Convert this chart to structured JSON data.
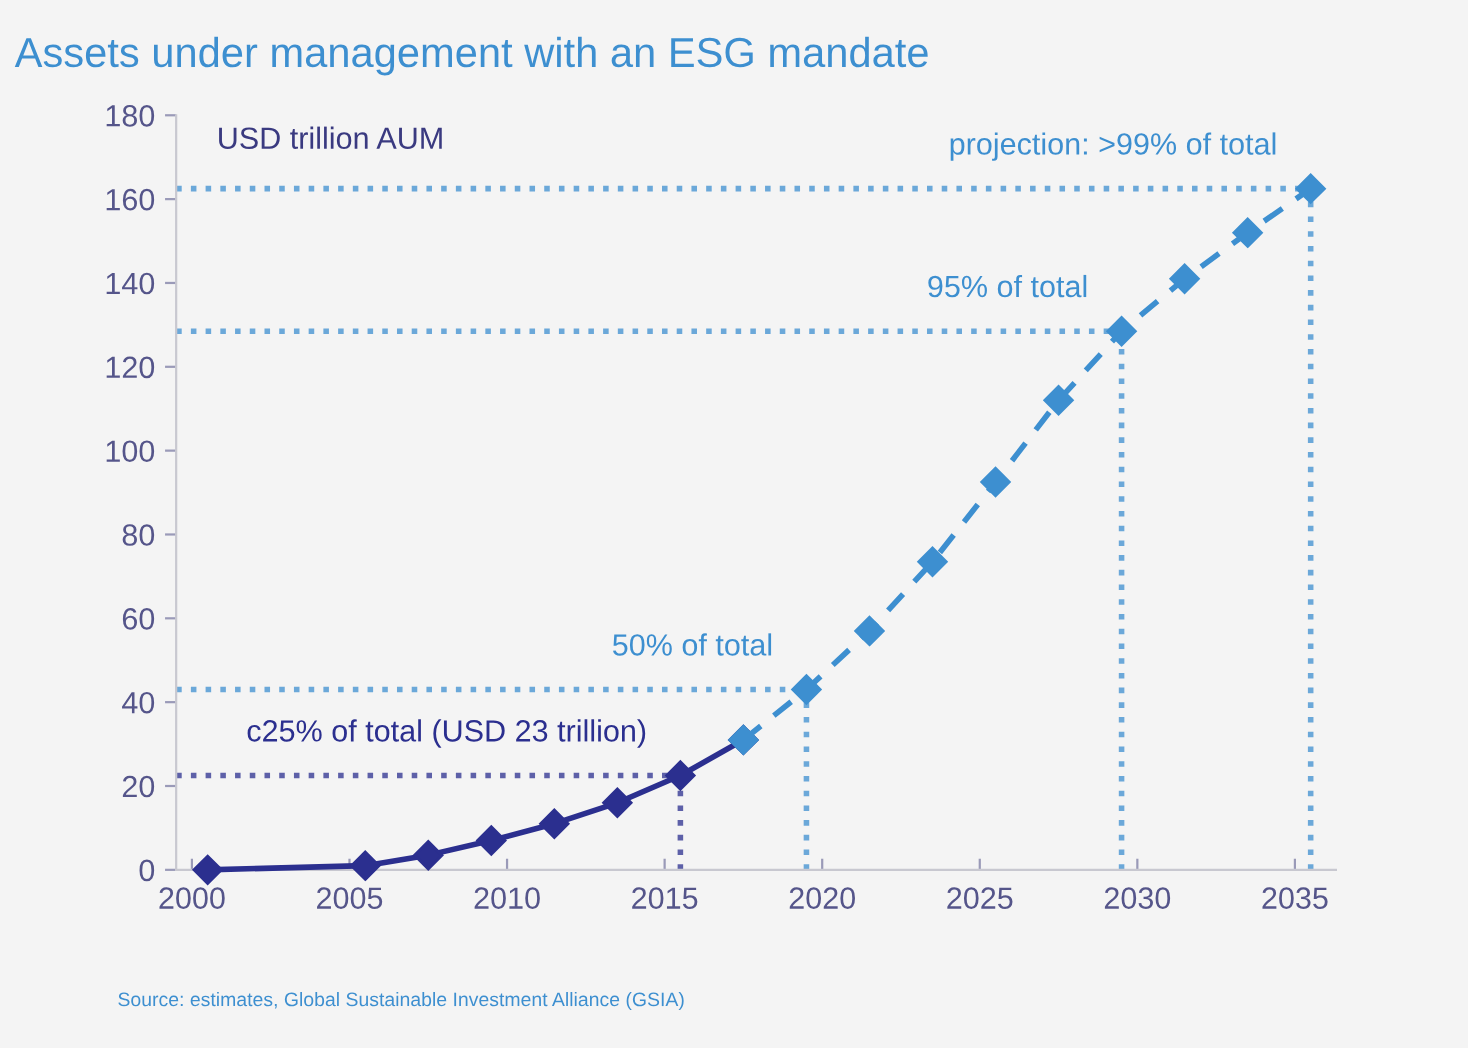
{
  "chart_data": {
    "type": "line",
    "title": "Assets under management with an ESG mandate",
    "ylabel": "USD trillion AUM",
    "series": [
      {
        "color": "#2b2f8f",
        "line_style": "solid",
        "x": [
          2000.5,
          2005.5,
          2007.5,
          2009.5,
          2011.5,
          2013.5,
          2015.5,
          2017.5
        ],
        "values": [
          0,
          1,
          3.5,
          7,
          11,
          16,
          22.5,
          31
        ]
      },
      {
        "color": "#3d8fd0",
        "line_style": "dashed",
        "x": [
          2017.5,
          2019.5,
          2021.5,
          2023.5,
          2025.5,
          2027.5,
          2029.5,
          2031.5,
          2033.5,
          2035.5
        ],
        "values": [
          31,
          43,
          57,
          73.5,
          92.5,
          112,
          128.5,
          141,
          152,
          162.5
        ]
      }
    ],
    "marker": "diamond",
    "xlim": [
      1999.5,
      2036.3
    ],
    "xticks": [
      2000,
      2005,
      2010,
      2015,
      2020,
      2025,
      2030,
      2035
    ],
    "ylim": [
      0,
      180
    ],
    "yticks": [
      0,
      20,
      40,
      60,
      80,
      100,
      120,
      140,
      160,
      180
    ],
    "grid": false,
    "legend": false,
    "ref_lines": [
      {
        "axis": "y",
        "value": 22.5,
        "color": "#2b2f8f",
        "line_style": "dotted"
      },
      {
        "axis": "x",
        "value": 2015.5,
        "color": "#2b2f8f",
        "line_style": "dotted"
      },
      {
        "axis": "y",
        "value": 43,
        "color": "#3d8fd0",
        "line_style": "dotted"
      },
      {
        "axis": "x",
        "value": 2019.5,
        "color": "#3d8fd0",
        "line_style": "dotted"
      },
      {
        "axis": "y",
        "value": 128.5,
        "color": "#3d8fd0",
        "line_style": "dotted"
      },
      {
        "axis": "x",
        "value": 2029.5,
        "color": "#3d8fd0",
        "line_style": "dotted"
      },
      {
        "axis": "y",
        "value": 162.5,
        "color": "#3d8fd0",
        "line_style": "dotted"
      },
      {
        "axis": "x",
        "value": 2035.5,
        "color": "#3d8fd0",
        "line_style": "dotted"
      }
    ],
    "annotations": [
      {
        "text": "c25% of total (USD 23 trillion)",
        "x": 2015.5,
        "y": 22.5
      },
      {
        "text": "50% of total",
        "x": 2019.5,
        "y": 43
      },
      {
        "text": "95% of total",
        "x": 2029.5,
        "y": 128.5
      },
      {
        "text": "projection: >99% of total",
        "x": 2035.5,
        "y": 162.5
      },
      "Source: estimates, Global Sustainable Investment Alliance (GSIA)"
    ]
  }
}
